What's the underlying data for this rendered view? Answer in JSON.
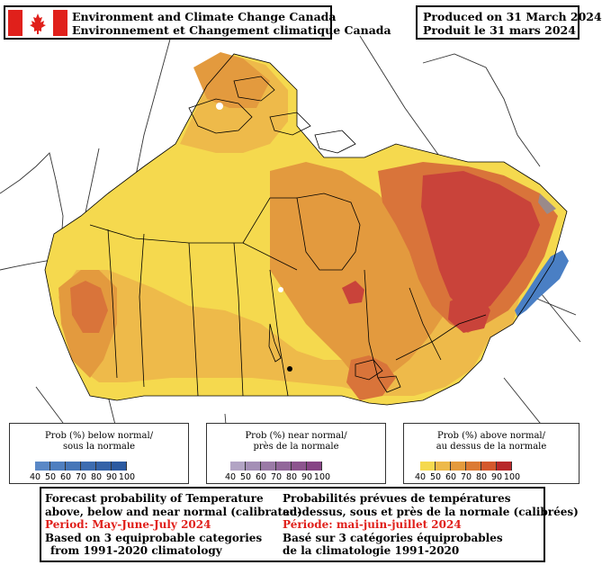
{
  "header": {
    "agency_en": "Environment and Climate Change Canada",
    "agency_fr": "Environnement et Changement climatique Canada",
    "produced_en": "Produced on 31 March 2024",
    "produced_fr": "Produit le 31 mars 2024",
    "flag_color": "#e0201b"
  },
  "legends": [
    {
      "title_en": "Prob (%) below normal/",
      "title_fr": "sous la normale",
      "ticks": [
        "40",
        "50",
        "60",
        "70",
        "80",
        "90",
        "100"
      ],
      "colors": [
        "#5a88c6",
        "#4f7fc0",
        "#4676b8",
        "#3d6cb0",
        "#3563a8",
        "#2c5aa0"
      ]
    },
    {
      "title_en": "Prob (%) near normal/",
      "title_fr": "près de la normale",
      "ticks": [
        "40",
        "50",
        "60",
        "70",
        "80",
        "90",
        "100"
      ],
      "colors": [
        "#b2a4c4",
        "#a48fb6",
        "#9a7aa6",
        "#92679a",
        "#8c548e",
        "#864485"
      ]
    },
    {
      "title_en": "Prob (%) above normal/",
      "title_fr": "au dessus de la normale",
      "ticks": [
        "40",
        "50",
        "60",
        "70",
        "80",
        "90",
        "100"
      ],
      "colors": [
        "#f5d94e",
        "#edb94a",
        "#e49a3d",
        "#dc7a34",
        "#d4582d",
        "#b8282a"
      ]
    }
  ],
  "info": {
    "en_line1": "Forecast probability of Temperature",
    "en_line2": "above, below and near normal (calibrated)",
    "en_period": "Period: May-June-July 2024",
    "en_line4": "Based on 3 equiprobable categories",
    "en_line5": "from 1991-2020 climatology",
    "fr_line1": "Probabilités prévues de températures",
    "fr_line2": "au-dessus, sous et près de la normale (calibrées)",
    "fr_period": "Période: mai-juin-juillet 2024",
    "fr_line4": "Basé sur 3 catégories équiprobables",
    "fr_line5": "de la climatologie 1991-2020",
    "period_color": "#e0201b"
  },
  "map_colors": {
    "yellow": "#f5d94e",
    "light_orange": "#eeba4a",
    "orange": "#e39a3e",
    "dark_orange": "#d9743a",
    "red": "#c9433a",
    "blue": "#4a7fc4",
    "boundary": "#000000"
  }
}
